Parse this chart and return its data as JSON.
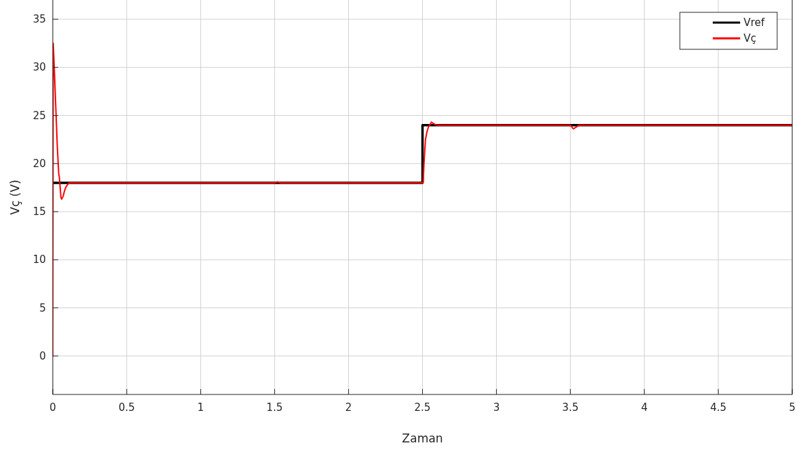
{
  "chart_data": {
    "type": "line",
    "xlabel": "Zaman",
    "ylabel": "Vç (V)",
    "xlim": [
      0,
      5
    ],
    "ylim": [
      -4,
      37
    ],
    "xticks": [
      0,
      0.5,
      1,
      1.5,
      2,
      2.5,
      3,
      3.5,
      4,
      4.5,
      5
    ],
    "yticks": [
      0,
      5,
      10,
      15,
      20,
      25,
      30,
      35
    ],
    "grid": true,
    "legend": "top right",
    "line_style": "solid",
    "series": [
      {
        "name": "Vref",
        "color": "#000000",
        "x": [
          0,
          2.5,
          2.5,
          5
        ],
        "values": [
          18,
          18,
          24,
          24
        ]
      },
      {
        "name": "Vç",
        "color": "#ff0000",
        "x": [
          0,
          0.003,
          0.01,
          0.02,
          0.03,
          0.04,
          0.045,
          0.055,
          0.06,
          0.07,
          0.08,
          0.09,
          0.11,
          0.5,
          1.5,
          1.52,
          1.54,
          1.56,
          2.5,
          2.505,
          2.51,
          2.52,
          2.53,
          2.54,
          2.56,
          2.58,
          2.6,
          3.0,
          3.5,
          3.52,
          3.54,
          3.56,
          4.0,
          5
        ],
        "values": [
          0,
          32.5,
          30,
          26,
          22,
          19,
          18.5,
          16.5,
          16.3,
          16.6,
          17.2,
          17.6,
          18,
          18,
          18,
          18.1,
          18,
          18,
          18,
          18.1,
          20,
          22.5,
          23.3,
          23.8,
          24.3,
          24.1,
          24,
          24,
          24,
          23.6,
          23.8,
          24,
          24,
          24
        ]
      }
    ]
  }
}
